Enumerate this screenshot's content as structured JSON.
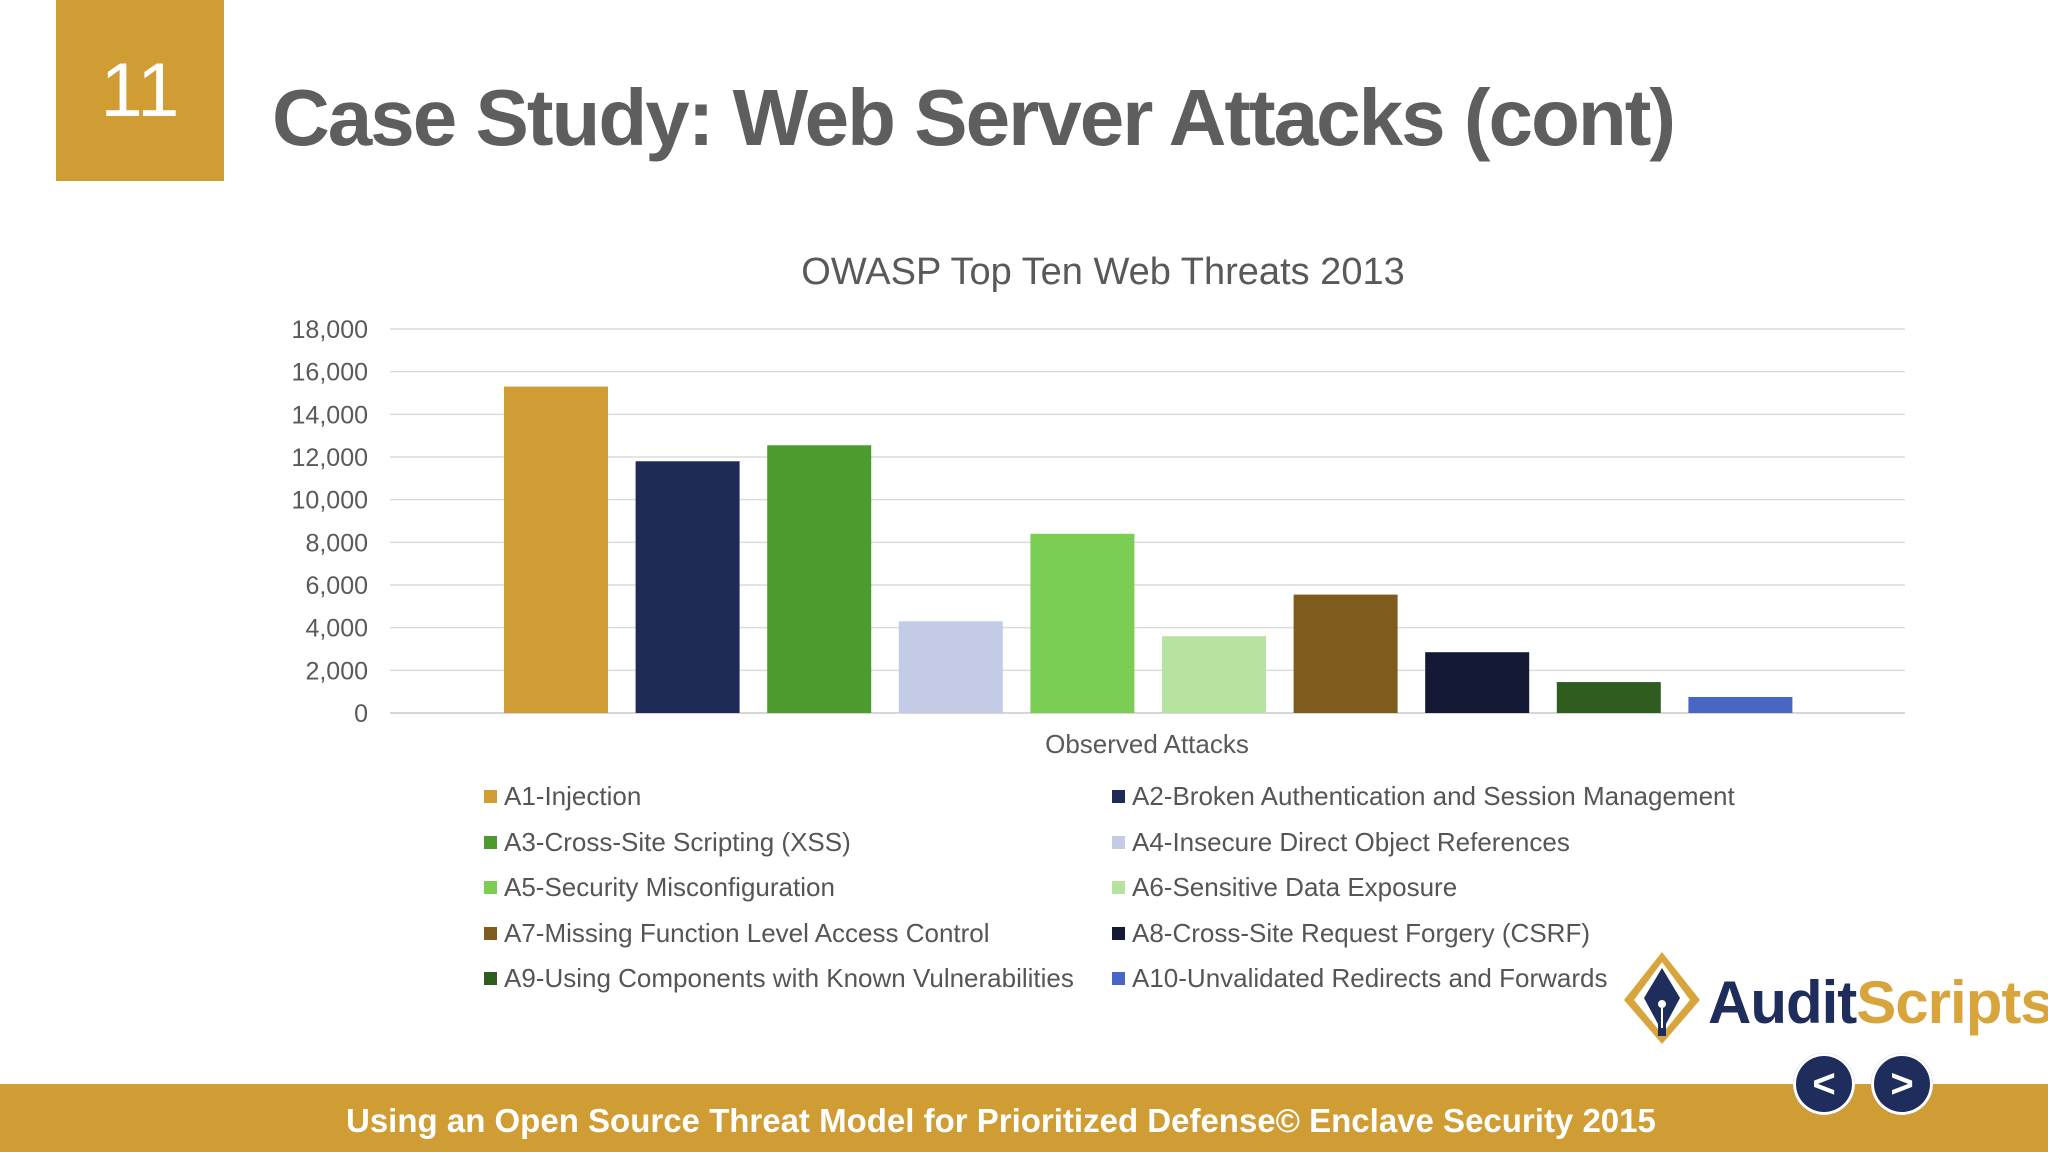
{
  "slide": {
    "number": "11",
    "title": "Case Study: Web Server Attacks (cont)"
  },
  "chart_data": {
    "type": "bar",
    "title": "OWASP Top Ten Web Threats 2013",
    "xlabel": "Observed Attacks",
    "ylabel": "",
    "categories": [
      "Observed Attacks"
    ],
    "ylim": [
      0,
      18000
    ],
    "yticks": [
      0,
      2000,
      4000,
      6000,
      8000,
      10000,
      12000,
      14000,
      16000,
      18000
    ],
    "ytick_labels": [
      "0",
      "2,000",
      "4,000",
      "6,000",
      "8,000",
      "10,000",
      "12,000",
      "14,000",
      "16,000",
      "18,000"
    ],
    "grid": true,
    "legend_position": "bottom",
    "series": [
      {
        "name": "A1-Injection",
        "values": [
          15300
        ],
        "color": "#cf9d33"
      },
      {
        "name": "A2-Broken Authentication and Session Management",
        "values": [
          11800
        ],
        "color": "#1f2b57"
      },
      {
        "name": "A3-Cross-Site Scripting (XSS)",
        "values": [
          12550
        ],
        "color": "#4d9a2e"
      },
      {
        "name": "A4-Insecure Direct Object References",
        "values": [
          4300
        ],
        "color": "#c3cbe7"
      },
      {
        "name": "A5-Security Misconfiguration",
        "values": [
          8400
        ],
        "color": "#7ccd53"
      },
      {
        "name": "A6-Sensitive Data Exposure",
        "values": [
          3600
        ],
        "color": "#b6e3a0"
      },
      {
        "name": "A7-Missing Function Level Access Control",
        "values": [
          5550
        ],
        "color": "#805b1e"
      },
      {
        "name": "A8-Cross-Site Request Forgery (CSRF)",
        "values": [
          2850
        ],
        "color": "#141a35"
      },
      {
        "name": "A9-Using Components with Known Vulnerabilities",
        "values": [
          1450
        ],
        "color": "#2f5d1f"
      },
      {
        "name": "A10-Unvalidated Redirects and Forwards",
        "values": [
          750
        ],
        "color": "#4867c4"
      }
    ]
  },
  "logo": {
    "part1": "Audit",
    "part2": "Scripts"
  },
  "footer": {
    "text": "Using an Open Source Threat Model for Prioritized Defense© Enclave Security 2015"
  },
  "nav": {
    "prev_label": "<",
    "next_label": ">"
  },
  "colors": {
    "accent": "#cf9d33",
    "navy": "#1f2d5c",
    "title_gray": "#5e5e5e"
  }
}
